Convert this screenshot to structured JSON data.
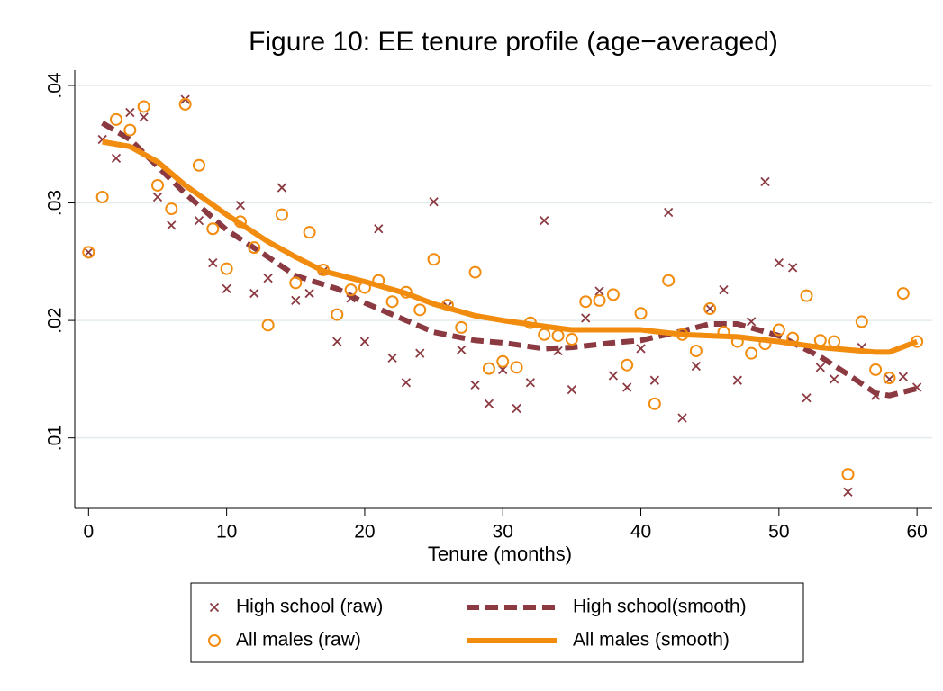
{
  "chart_data": {
    "type": "scatter",
    "title": "Figure 10: EE tenure profile (age−averaged)",
    "x_label": "Tenure (months)",
    "xlim": [
      -1,
      61.1
    ],
    "xticks": [
      0,
      10,
      20,
      30,
      40,
      50,
      60
    ],
    "ylim": [
      0.004,
      0.0413
    ],
    "yticks": [
      {
        "value": 0.01,
        "label": ".01"
      },
      {
        "value": 0.02,
        "label": ".02"
      },
      {
        "value": 0.03,
        "label": ".03"
      },
      {
        "value": 0.04,
        "label": ".04"
      }
    ],
    "grid": true,
    "legend": "bottom",
    "series": [
      {
        "name": "High school (raw)",
        "color": "#8c3a42",
        "mode": "markers",
        "marker": "x",
        "x": [
          0,
          1,
          2,
          3,
          4,
          5,
          6,
          7,
          8,
          9,
          10,
          11,
          12,
          13,
          14,
          15,
          16,
          17,
          18,
          19,
          20,
          21,
          22,
          23,
          24,
          25,
          26,
          27,
          28,
          29,
          30,
          31,
          32,
          33,
          34,
          35,
          36,
          37,
          38,
          39,
          40,
          41,
          42,
          43,
          44,
          45,
          46,
          47,
          48,
          49,
          50,
          51,
          52,
          53,
          54,
          55,
          56,
          57,
          58,
          59,
          60
        ],
        "values": [
          0.0258,
          0.0354,
          0.0338,
          0.0377,
          0.0373,
          0.0305,
          0.0281,
          0.0388,
          0.0285,
          0.0249,
          0.0227,
          0.0298,
          0.0223,
          0.0236,
          0.0313,
          0.0217,
          0.0223,
          0.0242,
          0.0182,
          0.0219,
          0.0182,
          0.0278,
          0.0168,
          0.0147,
          0.0172,
          0.0301,
          0.0212,
          0.0175,
          0.0145,
          0.0129,
          0.0158,
          0.0125,
          0.0147,
          0.0285,
          0.0174,
          0.0141,
          0.0202,
          0.0225,
          0.0153,
          0.0143,
          0.0176,
          0.0149,
          0.0292,
          0.0117,
          0.0161,
          0.021,
          0.0226,
          0.0149,
          0.0199,
          0.0318,
          0.0249,
          0.0245,
          0.0134,
          0.016,
          0.015,
          0.0054,
          0.0177,
          0.0136,
          0.015,
          0.0152,
          0.0143
        ]
      },
      {
        "name": "High school(smooth)",
        "color": "#8c3a42",
        "mode": "line",
        "dash": true,
        "x": [
          1,
          3,
          5,
          7,
          10,
          13,
          15,
          18,
          20,
          23,
          25,
          28,
          30,
          33,
          35,
          38,
          40,
          43,
          45,
          47,
          50,
          53,
          55,
          57,
          58,
          60
        ],
        "values": [
          0.0368,
          0.0354,
          0.0331,
          0.0308,
          0.0277,
          0.0254,
          0.0238,
          0.0227,
          0.0215,
          0.02,
          0.019,
          0.0183,
          0.0181,
          0.0176,
          0.0177,
          0.0181,
          0.0183,
          0.0191,
          0.0197,
          0.0197,
          0.0187,
          0.0169,
          0.0154,
          0.0138,
          0.0136,
          0.0142
        ]
      },
      {
        "name": "All males (raw)",
        "color": "#f28c0f",
        "mode": "markers",
        "marker": "circle",
        "x": [
          0,
          1,
          2,
          3,
          4,
          5,
          6,
          7,
          8,
          9,
          10,
          11,
          12,
          13,
          14,
          15,
          16,
          17,
          18,
          19,
          20,
          21,
          22,
          23,
          24,
          25,
          26,
          27,
          28,
          29,
          30,
          31,
          32,
          33,
          34,
          35,
          36,
          37,
          38,
          39,
          40,
          41,
          42,
          43,
          44,
          45,
          46,
          47,
          48,
          49,
          50,
          51,
          52,
          53,
          54,
          55,
          56,
          57,
          58,
          59,
          60
        ],
        "values": [
          0.0258,
          0.0305,
          0.0371,
          0.0362,
          0.0382,
          0.0315,
          0.0295,
          0.0384,
          0.0332,
          0.0278,
          0.0244,
          0.0284,
          0.0262,
          0.0196,
          0.029,
          0.0232,
          0.0275,
          0.0243,
          0.0205,
          0.0226,
          0.0228,
          0.0234,
          0.0216,
          0.0224,
          0.0209,
          0.0252,
          0.0213,
          0.0194,
          0.0241,
          0.0159,
          0.0165,
          0.016,
          0.0198,
          0.0188,
          0.0187,
          0.0184,
          0.0216,
          0.0217,
          0.0222,
          0.0162,
          0.0206,
          0.0129,
          0.0234,
          0.0188,
          0.0174,
          0.021,
          0.019,
          0.0182,
          0.0172,
          0.018,
          0.0192,
          0.0185,
          0.0221,
          0.0183,
          0.0182,
          0.0069,
          0.0199,
          0.0158,
          0.0151,
          0.0223,
          0.0182
        ]
      },
      {
        "name": "All males (smooth)",
        "color": "#f28c0f",
        "mode": "line",
        "dash": false,
        "x": [
          1,
          3,
          5,
          7,
          10,
          13,
          15,
          17,
          20,
          23,
          25,
          28,
          30,
          33,
          35,
          38,
          40,
          43,
          45,
          47,
          50,
          53,
          55,
          57,
          58,
          60
        ],
        "values": [
          0.0352,
          0.0348,
          0.0335,
          0.0315,
          0.029,
          0.0267,
          0.0254,
          0.0242,
          0.0233,
          0.0223,
          0.0214,
          0.0204,
          0.02,
          0.0195,
          0.0192,
          0.0192,
          0.0192,
          0.0188,
          0.0187,
          0.0186,
          0.0182,
          0.0177,
          0.0175,
          0.0173,
          0.0173,
          0.0182
        ]
      }
    ]
  }
}
